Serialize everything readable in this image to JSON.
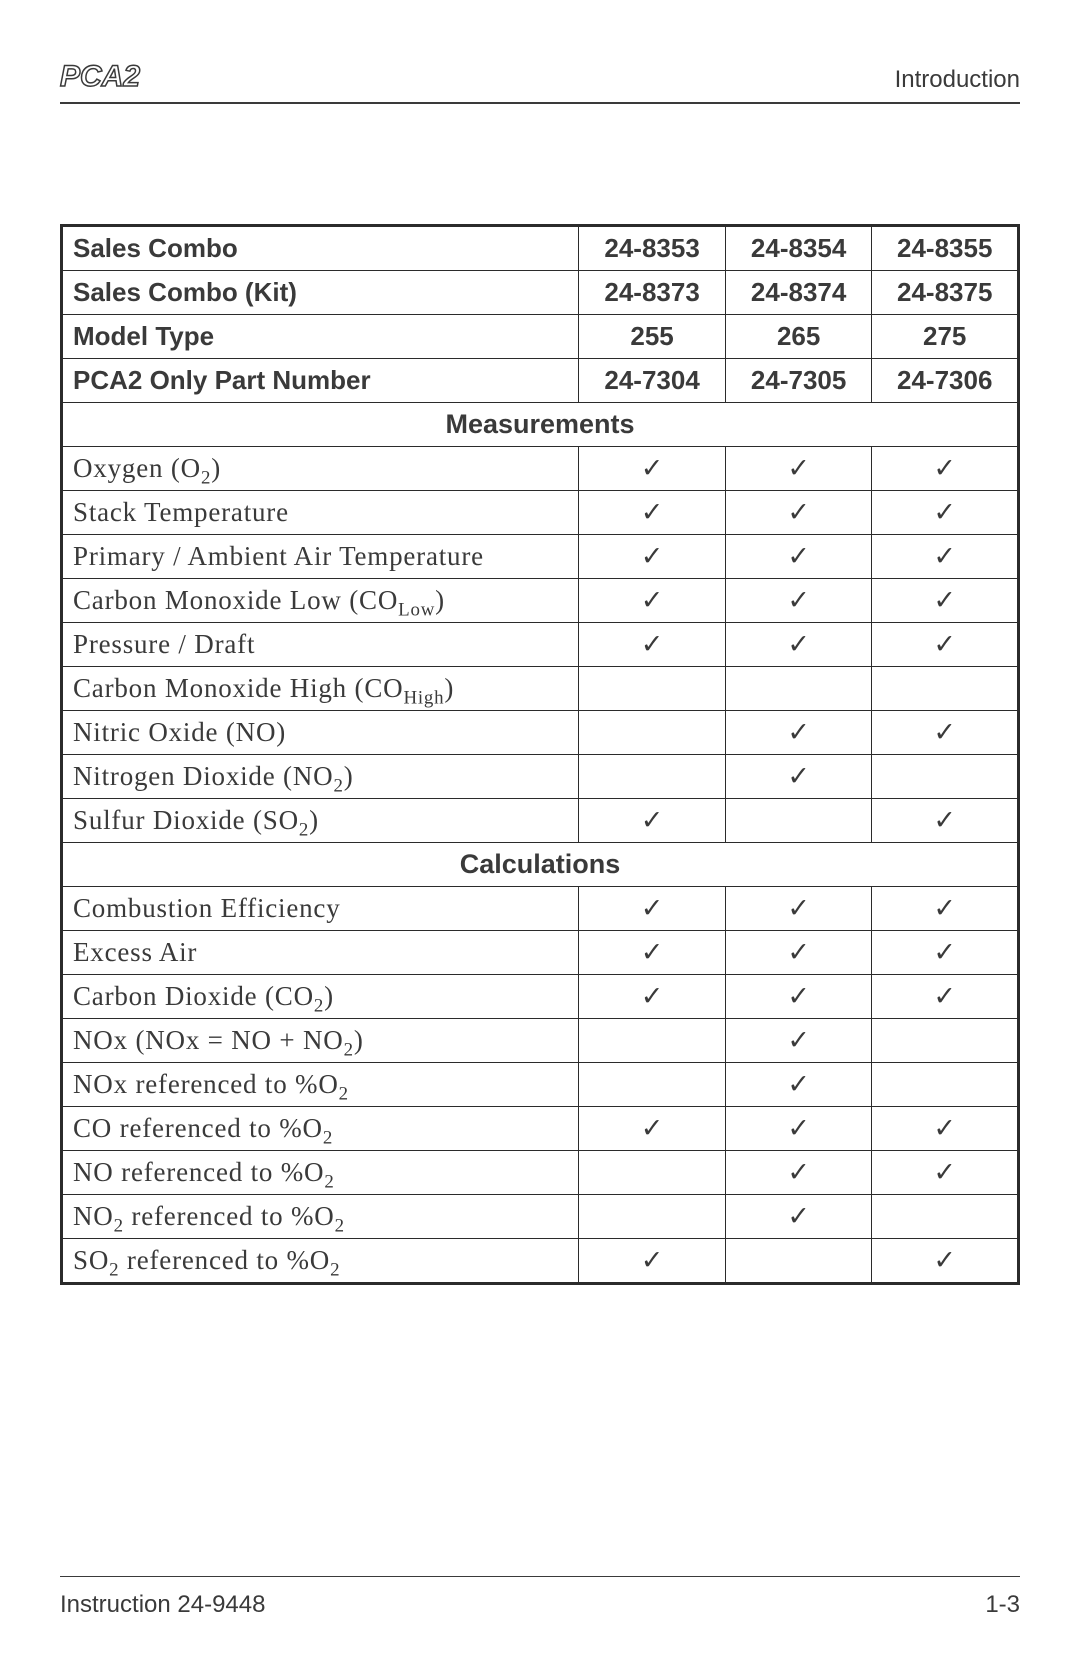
{
  "header": {
    "logo_text": "PCA2",
    "section_title": "Introduction"
  },
  "footer": {
    "left": "Instruction 24-9448",
    "right": "1-3"
  },
  "checkmark": "✓",
  "table": {
    "border_color": "#2b2b2b",
    "background_color": "#ffffff",
    "text_color": "#3a3a3a",
    "header_rows": [
      {
        "label": "Sales Combo",
        "c1": "24-8353",
        "c2": "24-8354",
        "c3": "24-8355"
      },
      {
        "label": "Sales Combo (Kit)",
        "c1": "24-8373",
        "c2": "24-8374",
        "c3": "24-8375"
      },
      {
        "label": "Model Type",
        "c1": "255",
        "c2": "265",
        "c3": "275"
      },
      {
        "label": "PCA2 Only Part Number",
        "c1": "24-7304",
        "c2": "24-7305",
        "c3": "24-7306"
      }
    ],
    "sections": [
      {
        "title": "Measurements",
        "rows": [
          {
            "label_html": "Oxygen (O<span class=\"sub\">2</span>)",
            "c1": true,
            "c2": true,
            "c3": true
          },
          {
            "label_html": "Stack Temperature",
            "c1": true,
            "c2": true,
            "c3": true
          },
          {
            "label_html": "Primary / Ambient Air Temperature",
            "c1": true,
            "c2": true,
            "c3": true
          },
          {
            "label_html": "Carbon Monoxide Low (CO<span class=\"sub\">Low</span>)",
            "c1": true,
            "c2": true,
            "c3": true
          },
          {
            "label_html": "Pressure / Draft",
            "c1": true,
            "c2": true,
            "c3": true
          },
          {
            "label_html": "Carbon Monoxide High (CO<span class=\"sub\">High</span>)",
            "c1": false,
            "c2": false,
            "c3": false
          },
          {
            "label_html": "Nitric Oxide (NO)",
            "c1": false,
            "c2": true,
            "c3": true
          },
          {
            "label_html": "Nitrogen Dioxide (NO<span class=\"sub\">2</span>)",
            "c1": false,
            "c2": true,
            "c3": false
          },
          {
            "label_html": "Sulfur Dioxide (SO<span class=\"sub\">2</span>)",
            "c1": true,
            "c2": false,
            "c3": true
          }
        ]
      },
      {
        "title": "Calculations",
        "rows": [
          {
            "label_html": "Combustion Efficiency",
            "c1": true,
            "c2": true,
            "c3": true
          },
          {
            "label_html": "Excess Air",
            "c1": true,
            "c2": true,
            "c3": true
          },
          {
            "label_html": "Carbon Dioxide (CO<span class=\"sub\">2</span>)",
            "c1": true,
            "c2": true,
            "c3": true
          },
          {
            "label_html": "NOx (NOx = NO + NO<span class=\"sub\">2</span>)",
            "c1": false,
            "c2": true,
            "c3": false
          },
          {
            "label_html": "NOx referenced to %O<span class=\"sub\">2</span>",
            "c1": false,
            "c2": true,
            "c3": false
          },
          {
            "label_html": "CO referenced to %O<span class=\"sub\">2</span>",
            "c1": true,
            "c2": true,
            "c3": true
          },
          {
            "label_html": "NO referenced to %O<span class=\"sub\">2</span>",
            "c1": false,
            "c2": true,
            "c3": true
          },
          {
            "label_html": "NO<span class=\"sub\">2</span> referenced to %O<span class=\"sub\">2</span>",
            "c1": false,
            "c2": true,
            "c3": false
          },
          {
            "label_html": "SO<span class=\"sub\">2</span> referenced to %O<span class=\"sub\">2</span>",
            "c1": true,
            "c2": false,
            "c3": true
          }
        ]
      }
    ]
  }
}
